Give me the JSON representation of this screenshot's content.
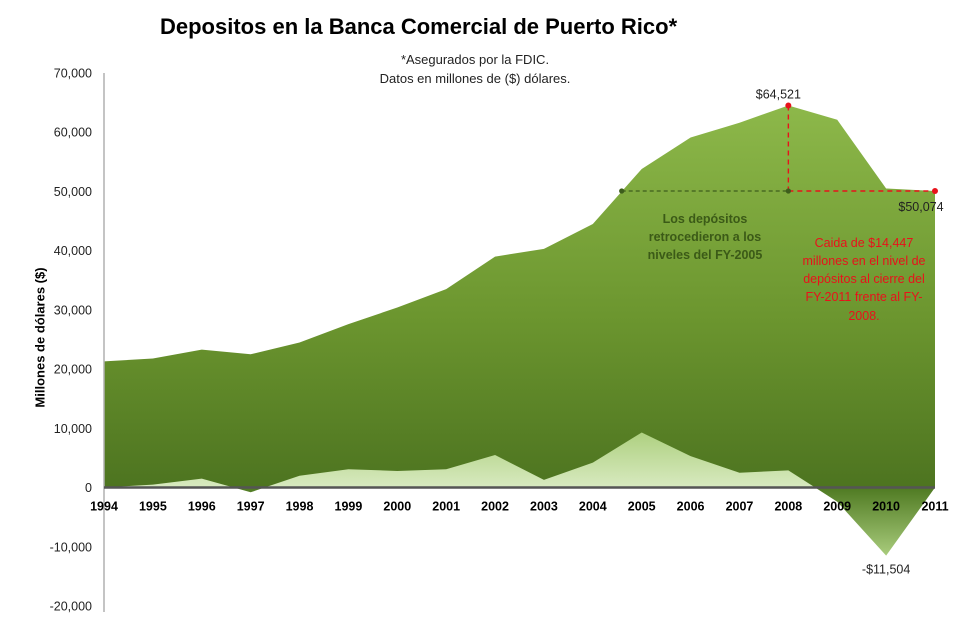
{
  "chart_data": {
    "type": "area",
    "title": "Depositos en la Banca Comercial de Puerto Rico*",
    "subtitle_line1": "*Asegurados por la FDIC.",
    "subtitle_line2": "Datos en millones de ($) dólares.",
    "ylabel": "Millones de dólares ($)",
    "xlabel": "",
    "ylim": [
      -20000,
      70000
    ],
    "yticks": [
      -20000,
      -10000,
      0,
      10000,
      20000,
      30000,
      40000,
      50000,
      60000,
      70000
    ],
    "ytick_labels": [
      "-20,000",
      "-10,000",
      "0",
      "10,000",
      "20,000",
      "30,000",
      "40,000",
      "50,000",
      "60,000",
      "70,000"
    ],
    "categories": [
      "1994",
      "1995",
      "1996",
      "1997",
      "1998",
      "1999",
      "2000",
      "2001",
      "2002",
      "2003",
      "2004",
      "2005",
      "2006",
      "2007",
      "2008",
      "2009",
      "2010",
      "2011"
    ],
    "series": [
      {
        "name": "",
        "values": [
          21300,
          21800,
          23300,
          22500,
          24500,
          27600,
          30400,
          33500,
          39000,
          40300,
          44500,
          53800,
          59100,
          61600,
          64521,
          62100,
          50500,
          50074
        ],
        "color": "#6f9a34"
      },
      {
        "name": "",
        "values": [
          0,
          500,
          1500,
          -800,
          2000,
          3100,
          2800,
          3100,
          5500,
          1300,
          4200,
          9300,
          5300,
          2500,
          2900,
          -2400,
          -11504,
          0
        ],
        "color": "#bcd89a"
      }
    ],
    "annotations": {
      "peak_label": "$64,521",
      "end_label": "$50,074",
      "trough_label": "-$11,504",
      "green_note": "Los depósitos retrocedieron a los niveles del FY-2005",
      "red_note": "Caida de $14,447 millones en el nivel de depósitos al cierre del FY-2011 frente al FY-2008."
    },
    "reference_level": 50074,
    "grid": false,
    "legend": "none"
  }
}
